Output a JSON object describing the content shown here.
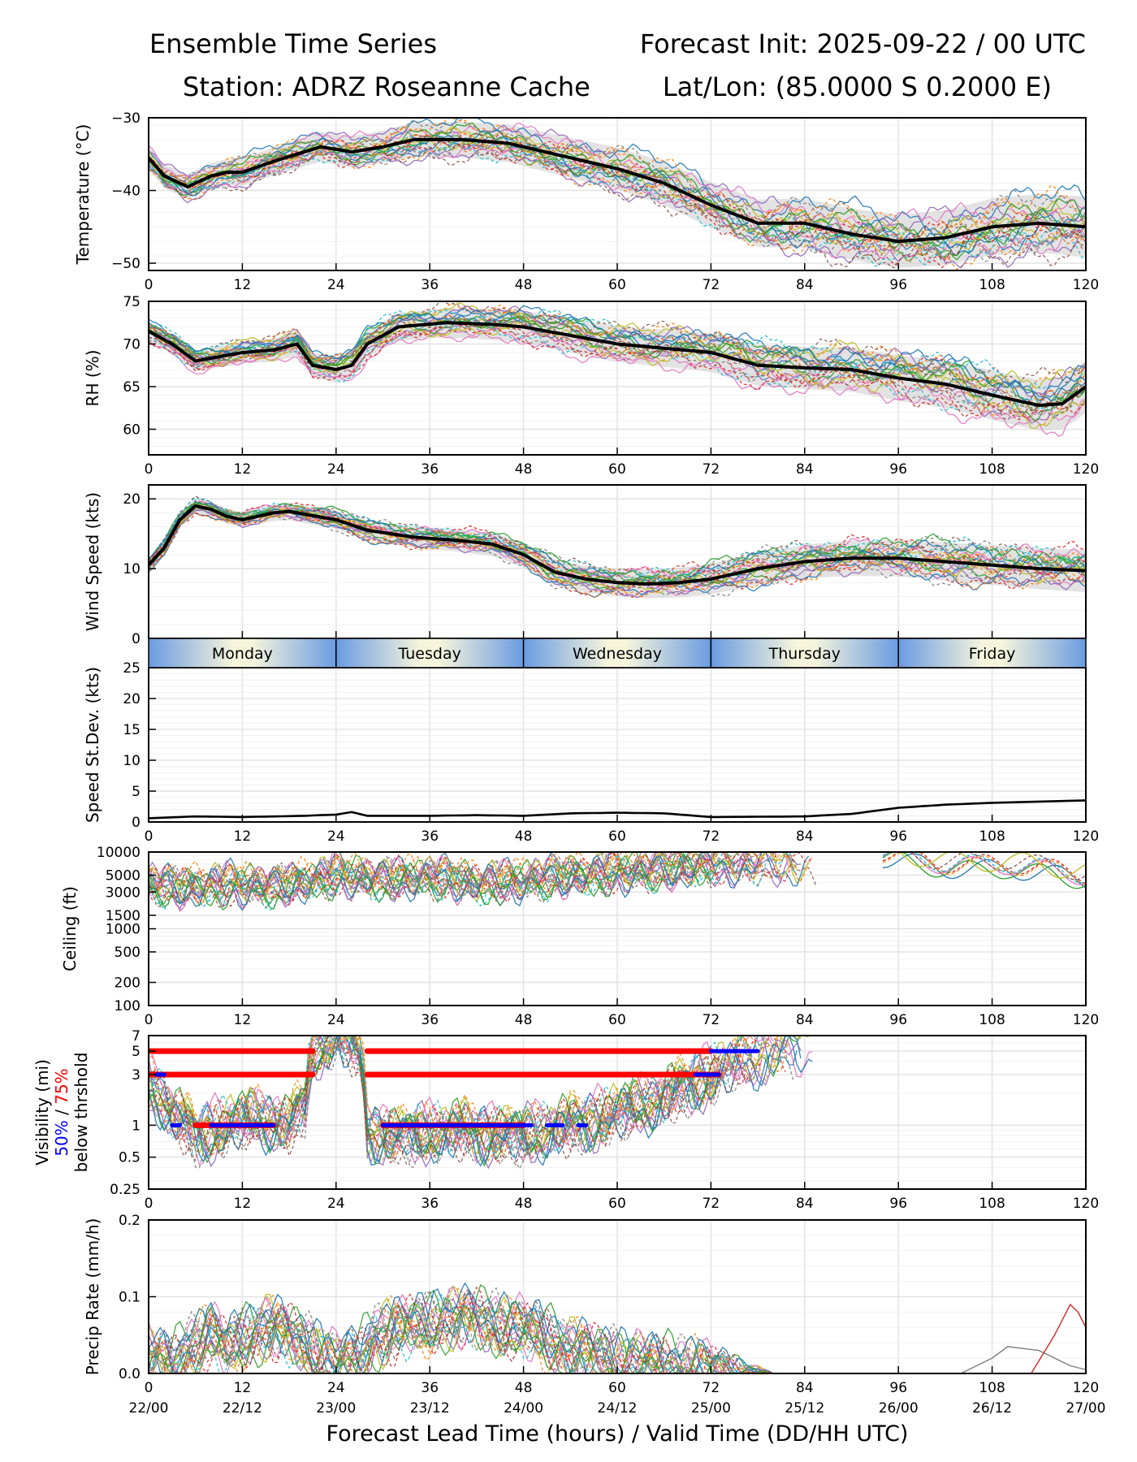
{
  "header": {
    "title_left": "Ensemble Time Series",
    "title_right": "Forecast Init: 2025-09-22 / 00 UTC",
    "station": "Station: ADRZ Roseanne Cache",
    "latlon": "Lat/Lon: (85.0000 S 0.2000 E)"
  },
  "chart_data": {
    "type": "line",
    "x_range": [
      0,
      120
    ],
    "x_ticks": [
      0,
      12,
      24,
      36,
      48,
      60,
      72,
      84,
      96,
      108,
      120
    ],
    "valid_time_labels": [
      "22/00",
      "22/12",
      "23/00",
      "23/12",
      "24/00",
      "24/12",
      "25/00",
      "25/12",
      "26/00",
      "26/12",
      "27/00"
    ],
    "xlabel": "Forecast Lead Time (hours) / Valid Time (DD/HH UTC)",
    "day_band": [
      "Monday",
      "Tuesday",
      "Wednesday",
      "Thursday",
      "Friday"
    ],
    "member_colors": [
      "#1f77b4",
      "#ff7f0e",
      "#2ca02c",
      "#d62728",
      "#9467bd",
      "#8c564b",
      "#e377c2",
      "#7f7f7f",
      "#bcbd22",
      "#17becf"
    ],
    "panels": [
      {
        "key": "temp",
        "ylabel": "Temperature (°C)",
        "scale": "linear",
        "ylim": [
          -51,
          -30
        ],
        "yticks": [
          -50,
          -40,
          -30
        ],
        "yticklabels": [
          "−50",
          "−40",
          "−30"
        ],
        "spread": 1.6,
        "spread_growth": 1.6,
        "mean": [
          [
            0,
            -35.5
          ],
          [
            2,
            -38
          ],
          [
            5,
            -39.5
          ],
          [
            8,
            -38
          ],
          [
            10,
            -37.5
          ],
          [
            12,
            -37.5
          ],
          [
            16,
            -36
          ],
          [
            22,
            -34
          ],
          [
            26,
            -34.7
          ],
          [
            30,
            -34
          ],
          [
            34,
            -33
          ],
          [
            40,
            -33
          ],
          [
            46,
            -33.5
          ],
          [
            52,
            -35
          ],
          [
            60,
            -37
          ],
          [
            66,
            -39
          ],
          [
            72,
            -42
          ],
          [
            78,
            -44.5
          ],
          [
            84,
            -44.5
          ],
          [
            90,
            -46
          ],
          [
            96,
            -47
          ],
          [
            102,
            -46.5
          ],
          [
            108,
            -45
          ],
          [
            114,
            -44.5
          ],
          [
            120,
            -45
          ]
        ]
      },
      {
        "key": "rh",
        "ylabel": "RH (%)",
        "scale": "linear",
        "ylim": [
          57,
          75
        ],
        "yticks": [
          60,
          65,
          70,
          75
        ],
        "yticklabels": [
          "60",
          "65",
          "70",
          "75"
        ],
        "spread": 1.1,
        "spread_growth": 1.8,
        "mean": [
          [
            0,
            71.5
          ],
          [
            3,
            70
          ],
          [
            6,
            68
          ],
          [
            9,
            68.5
          ],
          [
            12,
            69
          ],
          [
            16,
            69.3
          ],
          [
            19,
            70
          ],
          [
            21,
            67.5
          ],
          [
            24,
            67
          ],
          [
            26,
            67.5
          ],
          [
            28,
            70
          ],
          [
            32,
            72
          ],
          [
            38,
            72.5
          ],
          [
            44,
            72.3
          ],
          [
            48,
            72
          ],
          [
            54,
            71
          ],
          [
            60,
            70
          ],
          [
            66,
            69.5
          ],
          [
            72,
            69
          ],
          [
            78,
            67.5
          ],
          [
            84,
            67.2
          ],
          [
            90,
            67
          ],
          [
            96,
            66
          ],
          [
            102,
            65.3
          ],
          [
            108,
            64
          ],
          [
            114,
            62.8
          ],
          [
            117,
            63
          ],
          [
            120,
            65
          ]
        ]
      },
      {
        "key": "wind",
        "ylabel": "Wind Speed (kts)",
        "scale": "linear",
        "ylim": [
          0,
          22
        ],
        "yticks": [
          0,
          10,
          20
        ],
        "yticklabels": [
          "0",
          "10",
          "20"
        ],
        "spread": 0.9,
        "spread_growth": 2.4,
        "mean": [
          [
            0,
            10.5
          ],
          [
            2,
            13
          ],
          [
            4,
            17
          ],
          [
            6,
            19
          ],
          [
            8,
            18.5
          ],
          [
            10,
            17.5
          ],
          [
            12,
            17
          ],
          [
            14,
            17.5
          ],
          [
            16,
            18
          ],
          [
            18,
            18.2
          ],
          [
            20,
            17.8
          ],
          [
            24,
            17
          ],
          [
            28,
            15.5
          ],
          [
            34,
            14.5
          ],
          [
            40,
            14
          ],
          [
            44,
            13.5
          ],
          [
            48,
            12
          ],
          [
            52,
            9.5
          ],
          [
            56,
            8.5
          ],
          [
            60,
            8
          ],
          [
            64,
            7.8
          ],
          [
            68,
            8
          ],
          [
            72,
            8.5
          ],
          [
            78,
            10
          ],
          [
            84,
            11
          ],
          [
            90,
            11.5
          ],
          [
            96,
            11.5
          ],
          [
            102,
            11
          ],
          [
            108,
            10.5
          ],
          [
            114,
            10
          ],
          [
            120,
            9.7
          ]
        ]
      },
      {
        "key": "sd",
        "ylabel": "Speed St.Dev. (kts)",
        "scale": "linear",
        "ylim": [
          0,
          25
        ],
        "yticks": [
          0,
          5,
          10,
          15,
          20,
          25
        ],
        "yticklabels": [
          "0",
          "5",
          "10",
          "15",
          "20",
          "25"
        ],
        "mean": [
          [
            0,
            0.6
          ],
          [
            6,
            0.9
          ],
          [
            12,
            0.8
          ],
          [
            20,
            1.0
          ],
          [
            24,
            1.2
          ],
          [
            26,
            1.6
          ],
          [
            28,
            1.0
          ],
          [
            36,
            1.0
          ],
          [
            42,
            1.1
          ],
          [
            48,
            1.0
          ],
          [
            54,
            1.4
          ],
          [
            60,
            1.5
          ],
          [
            66,
            1.4
          ],
          [
            72,
            0.8
          ],
          [
            84,
            0.9
          ],
          [
            90,
            1.3
          ],
          [
            96,
            2.3
          ],
          [
            102,
            2.8
          ],
          [
            108,
            3.1
          ],
          [
            114,
            3.3
          ],
          [
            120,
            3.5
          ]
        ]
      },
      {
        "key": "ceiling",
        "ylabel": "Ceiling (ft)",
        "scale": "log",
        "ylim": [
          100,
          10000
        ],
        "yticks": [
          100,
          200,
          500,
          1000,
          1500,
          3000,
          5000,
          10000
        ],
        "yticklabels": [
          "100",
          "200",
          "500",
          "1000",
          "1500",
          "3000",
          "5000",
          10000
        ],
        "mean": [
          [
            0,
            4000
          ],
          [
            4,
            3500
          ],
          [
            10,
            3800
          ],
          [
            16,
            3600
          ],
          [
            20,
            4200
          ],
          [
            24,
            5000
          ],
          [
            30,
            4500
          ],
          [
            36,
            4800
          ],
          [
            42,
            4000
          ],
          [
            48,
            4300
          ],
          [
            54,
            5000
          ],
          [
            60,
            5500
          ],
          [
            66,
            6000
          ],
          [
            72,
            7000
          ]
        ],
        "tail": [
          [
            94,
            9500
          ],
          [
            98,
            8000
          ],
          [
            102,
            7000
          ],
          [
            106,
            6500
          ],
          [
            110,
            7000
          ],
          [
            114,
            6000
          ],
          [
            120,
            5000
          ]
        ]
      },
      {
        "key": "vis",
        "ylabel": "Visibility (mi)",
        "ylabel2": [
          "50%",
          " / ",
          "75%"
        ],
        "ylabel3": "below thrshold",
        "scale": "log",
        "ylim": [
          0.25,
          7
        ],
        "yticks": [
          0.25,
          0.5,
          1,
          3,
          5,
          7
        ],
        "yticklabels": [
          "0.25",
          "0.5",
          "1",
          "3",
          "5",
          "7"
        ],
        "mean": [
          [
            0,
            2.5
          ],
          [
            3,
            1.3
          ],
          [
            6,
            0.8
          ],
          [
            10,
            1.0
          ],
          [
            14,
            1.2
          ],
          [
            18,
            1.0
          ],
          [
            20,
            1.6
          ],
          [
            21,
            5
          ],
          [
            24,
            7
          ],
          [
            27,
            5
          ],
          [
            28,
            0.9
          ],
          [
            32,
            0.8
          ],
          [
            40,
            0.9
          ],
          [
            48,
            0.8
          ],
          [
            54,
            1.0
          ],
          [
            60,
            1.3
          ],
          [
            66,
            1.8
          ],
          [
            72,
            3
          ],
          [
            78,
            4.5
          ],
          [
            84,
            5.5
          ],
          [
            90,
            6.5
          ],
          [
            96,
            7
          ]
        ],
        "thresholds": {
          "red_5": [
            [
              0,
              21
            ],
            [
              28,
              72
            ]
          ],
          "red_3": [
            [
              0,
              21
            ],
            [
              28,
              73
            ]
          ],
          "red_1": [
            [
              6,
              16
            ],
            [
              30,
              48
            ]
          ],
          "blue_5": [
            [
              72,
              78
            ]
          ],
          "blue_3": [
            [
              1,
              2
            ],
            [
              70,
              73
            ]
          ],
          "blue_1": [
            [
              3,
              4
            ],
            [
              8,
              16
            ],
            [
              30,
              49
            ],
            [
              51,
              53
            ],
            [
              55,
              56
            ]
          ]
        }
      },
      {
        "key": "precip",
        "ylabel": "Precip Rate (mm/h)",
        "scale": "linear",
        "ylim": [
          0,
          0.2
        ],
        "yticks": [
          0,
          0.1,
          0.2
        ],
        "yticklabels": [
          "0.0",
          "0.1",
          "0.2"
        ],
        "mean": [
          [
            0,
            0.02
          ],
          [
            3,
            0.01
          ],
          [
            6,
            0.04
          ],
          [
            8,
            0.05
          ],
          [
            10,
            0.03
          ],
          [
            13,
            0.05
          ],
          [
            15,
            0.06
          ],
          [
            18,
            0.05
          ],
          [
            21,
            0.03
          ],
          [
            24,
            0.01
          ],
          [
            27,
            0.02
          ],
          [
            29,
            0.05
          ],
          [
            34,
            0.06
          ],
          [
            38,
            0.07
          ],
          [
            42,
            0.07
          ],
          [
            46,
            0.06
          ],
          [
            50,
            0.05
          ],
          [
            54,
            0.03
          ],
          [
            58,
            0.02
          ],
          [
            64,
            0.01
          ],
          [
            72,
            0.005
          ],
          [
            80,
            0.0
          ],
          [
            120,
            0.0
          ]
        ],
        "outliers": [
          [
            [
              104,
              0
            ],
            [
              108,
              0.02
            ],
            [
              110,
              0.035
            ],
            [
              114,
              0.03
            ],
            [
              118,
              0.01
            ],
            [
              120,
              0.005
            ]
          ],
          [
            [
              113,
              0
            ],
            [
              116,
              0.05
            ],
            [
              118,
              0.09
            ],
            [
              119,
              0.08
            ],
            [
              120,
              0.06
            ]
          ]
        ]
      }
    ]
  }
}
